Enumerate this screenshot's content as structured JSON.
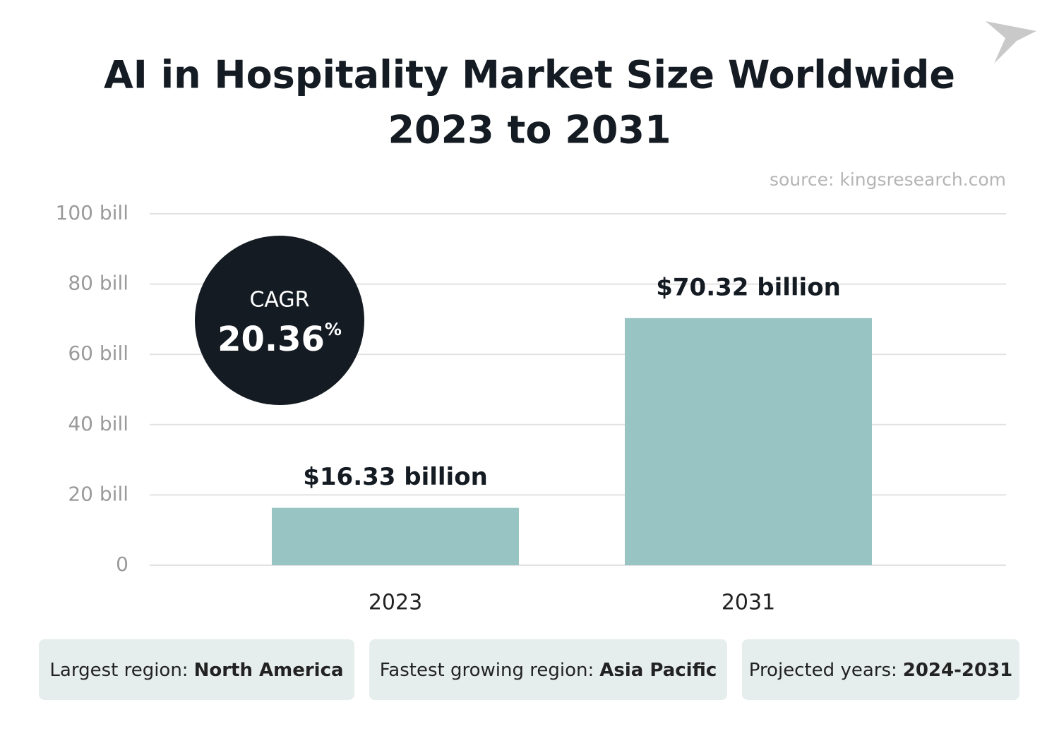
{
  "chart_data": {
    "type": "bar",
    "title": [
      "AI in Hospitality Market Size Worldwide",
      "2023 to 2031"
    ],
    "source": "source: kingsresearch.com",
    "categories": [
      "2023",
      "2031"
    ],
    "values": [
      16.33,
      70.32
    ],
    "value_labels": [
      "$16.33 billion",
      "$70.32 billion"
    ],
    "color": "#98c5c3",
    "ylim": [
      0,
      100
    ],
    "yticks": [
      0,
      {
        "value": 20,
        "label": "20 bill"
      },
      {
        "value": 40,
        "label": "40 bill"
      },
      {
        "value": 60,
        "label": "60 bill"
      },
      {
        "value": 80,
        "label": "80 bill"
      },
      {
        "value": 100,
        "label": "100 bill"
      }
    ],
    "grid": true,
    "cagr": {
      "label": "CAGR",
      "value": "20.36",
      "unit": "%"
    },
    "facts": [
      {
        "label": "Largest region:",
        "value": "North America"
      },
      {
        "label": "Fastest growing region:",
        "value": "Asia Pacific"
      },
      {
        "label": "Projected years:",
        "value": "2024-2031"
      }
    ]
  }
}
